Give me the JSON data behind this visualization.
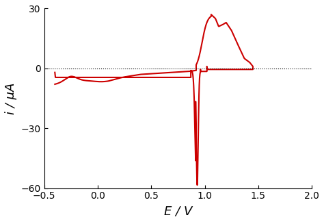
{
  "xlim": [
    -0.5,
    2.0
  ],
  "ylim": [
    -60,
    30
  ],
  "xticks": [
    -0.5,
    0.0,
    0.5,
    1.0,
    1.5,
    2.0
  ],
  "yticks": [
    -60,
    -30,
    0,
    30
  ],
  "xlabel": "E / V",
  "ylabel": "i / μA",
  "line_color": "#cc0000",
  "line_width": 1.5,
  "dotted_line_y": 0,
  "background_color": "#ffffff",
  "figsize": [
    4.74,
    3.24
  ],
  "dpi": 100
}
